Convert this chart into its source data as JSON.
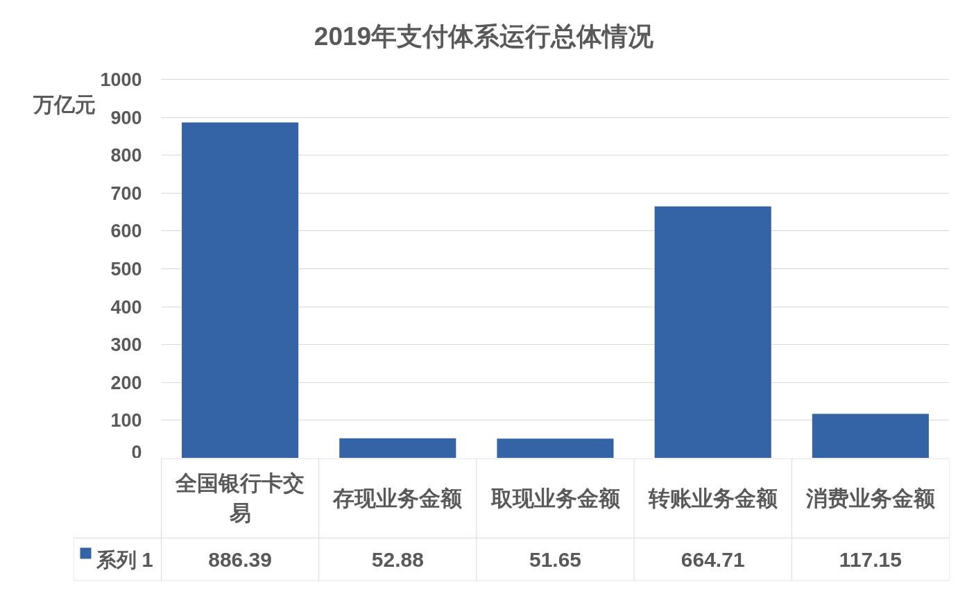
{
  "chart_data": {
    "type": "bar",
    "title": "2019年支付体系运行总体情况",
    "ylabel": "万亿元",
    "categories": [
      "全国银行卡交易",
      "存现业务金额",
      "取现业务金额",
      "转账业务金额",
      "消费业务金额"
    ],
    "series": [
      {
        "name": "系列 1",
        "color": "#3463a6",
        "values": [
          886.39,
          52.88,
          51.65,
          664.71,
          117.15
        ]
      }
    ],
    "ylim": [
      0,
      1000
    ],
    "yticks": [
      0,
      100,
      200,
      300,
      400,
      500,
      600,
      700,
      800,
      900,
      1000
    ],
    "grid": "y",
    "legend": "bottom",
    "data_labels": true
  }
}
